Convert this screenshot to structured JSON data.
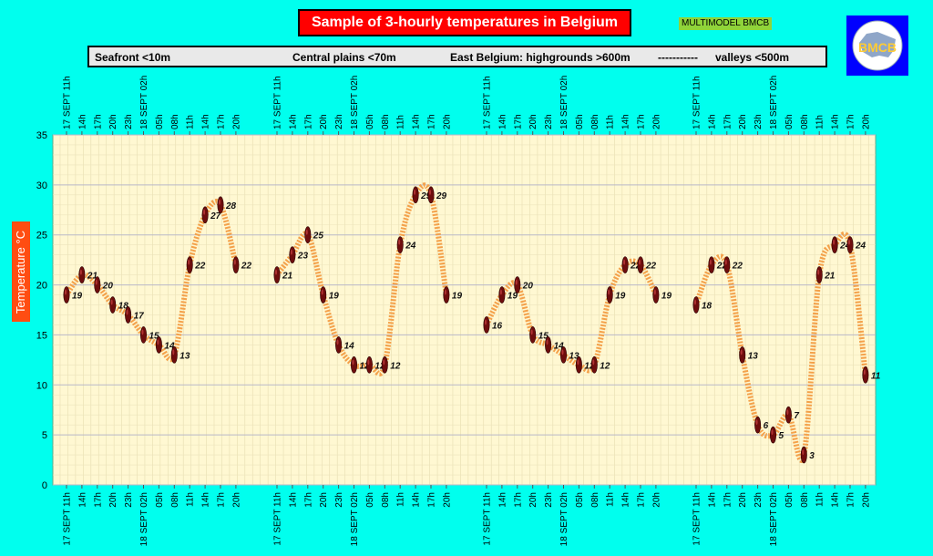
{
  "header": {
    "title": "Sample of 3-hourly temperatures in Belgium",
    "model_badge": "MULTIMODEL BMCB",
    "logo_text": "BMCB"
  },
  "legend": {
    "seafront": "Seafront <10m",
    "central": "Central plains <70m",
    "east": "East Belgium: highgrounds >600m",
    "separator": "-----------",
    "valleys": "valleys <500m"
  },
  "chart_data": {
    "type": "line",
    "title": "Sample of 3-hourly temperatures in Belgium",
    "ylabel": "Temperature   °C",
    "xlabel": "",
    "ylim": [
      0,
      35
    ],
    "yticks": [
      0,
      5,
      10,
      15,
      20,
      25,
      30,
      35
    ],
    "grid": true,
    "categories": [
      "17 SEPT 11h",
      "14h",
      "17h",
      "20h",
      "23h",
      "18 SEPT 02h",
      "05h",
      "08h",
      "11h",
      "14h",
      "17h",
      "20h"
    ],
    "series": [
      {
        "name": "Seafront <10m",
        "values": [
          19,
          21,
          20,
          18,
          17,
          15,
          14,
          13,
          22,
          27,
          28,
          22
        ]
      },
      {
        "name": "Central plains <70m",
        "values": [
          21,
          23,
          25,
          19,
          14,
          12,
          12,
          12,
          24,
          29,
          29,
          19
        ]
      },
      {
        "name": "East Belgium: highgrounds >600m",
        "values": [
          16,
          19,
          20,
          15,
          14,
          13,
          12,
          12,
          19,
          22,
          22,
          19
        ]
      },
      {
        "name": "valleys <500m",
        "values": [
          18,
          22,
          22,
          13,
          6,
          5,
          7,
          3,
          21,
          24,
          24,
          11
        ]
      }
    ]
  }
}
